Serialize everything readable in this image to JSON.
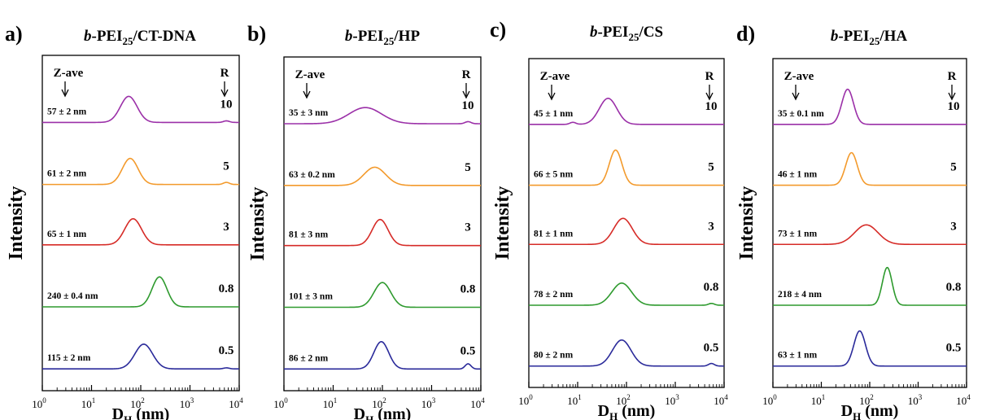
{
  "chart_data": [
    {
      "type": "line",
      "panel_label": "a)",
      "title_italic": "b",
      "title_main": "-PEI",
      "title_sub": "25",
      "title_tail": "/CT-DNA",
      "ylabel": "Intensity",
      "xlabel_main": "D",
      "xlabel_sub": "H",
      "xlabel_tail": " (nm)",
      "x_scale": "log",
      "xlim": [
        1,
        10000
      ],
      "x_ticks": [
        "10",
        "10",
        "10",
        "10",
        "10"
      ],
      "x_tick_exponents": [
        "0",
        "1",
        "2",
        "3",
        "4"
      ],
      "zave_label": "Z-ave",
      "r_label": "R",
      "series": [
        {
          "r": "10",
          "z_ave": "57 ± 2 nm",
          "color": "#9b30a8",
          "peak_x": 57,
          "width": 0.17,
          "height": 1.0,
          "extra_peak_x": 5500,
          "extra_height": 0.06
        },
        {
          "r": "5",
          "z_ave": "61 ± 2 nm",
          "color": "#f39a2c",
          "peak_x": 61,
          "width": 0.16,
          "height": 1.0,
          "extra_peak_x": 5500,
          "extra_height": 0.08
        },
        {
          "r": "3",
          "z_ave": "65 ± 1 nm",
          "color": "#d62b27",
          "peak_x": 70,
          "width": 0.17,
          "height": 1.0
        },
        {
          "r": "0.8",
          "z_ave": "240 ± 0.4 nm",
          "color": "#2e9a2e",
          "peak_x": 240,
          "width": 0.15,
          "height": 1.15
        },
        {
          "r": "0.5",
          "z_ave": "115 ± 2 nm",
          "color": "#2a2a9a",
          "peak_x": 115,
          "width": 0.18,
          "height": 0.95,
          "extra_peak_x": 5500,
          "extra_height": 0.04
        }
      ]
    },
    {
      "type": "line",
      "panel_label": "b)",
      "title_italic": "b",
      "title_main": "-PEI",
      "title_sub": "25",
      "title_tail": "/HP",
      "ylabel": "Intensity",
      "xlabel_main": "D",
      "xlabel_sub": "H",
      "xlabel_tail": " (nm)",
      "x_scale": "log",
      "xlim": [
        1,
        10000
      ],
      "x_ticks": [
        "10",
        "10",
        "10",
        "10",
        "10"
      ],
      "x_tick_exponents": [
        "0",
        "1",
        "2",
        "3",
        "4"
      ],
      "zave_label": "Z-ave",
      "r_label": "R",
      "series": [
        {
          "r": "10",
          "z_ave": "35 ± 3 nm",
          "color": "#9b30a8",
          "peak_x": 45,
          "width": 0.33,
          "height": 0.62,
          "extra_peak_x": 5500,
          "extra_height": 0.08
        },
        {
          "r": "5",
          "z_ave": "63 ± 0.2 nm",
          "color": "#f39a2c",
          "peak_x": 70,
          "width": 0.22,
          "height": 0.7
        },
        {
          "r": "3",
          "z_ave": "81 ± 3 nm",
          "color": "#d62b27",
          "peak_x": 90,
          "width": 0.16,
          "height": 1.0
        },
        {
          "r": "0.8",
          "z_ave": "101 ± 3 nm",
          "color": "#2e9a2e",
          "peak_x": 100,
          "width": 0.17,
          "height": 0.95
        },
        {
          "r": "0.5",
          "z_ave": "86 ± 2 nm",
          "color": "#2a2a9a",
          "peak_x": 95,
          "width": 0.15,
          "height": 1.05,
          "extra_peak_x": 5500,
          "extra_height": 0.2
        }
      ]
    },
    {
      "type": "line",
      "panel_label": "c)",
      "title_italic": "b",
      "title_main": "-PEI",
      "title_sub": "25",
      "title_tail": "/CS",
      "ylabel": "Intensity",
      "xlabel_main": "D",
      "xlabel_sub": "H",
      "xlabel_tail": " (nm)",
      "x_scale": "log",
      "xlim": [
        1,
        10000
      ],
      "x_ticks": [
        "10",
        "10",
        "10",
        "10",
        "10"
      ],
      "x_tick_exponents": [
        "0",
        "1",
        "2",
        "3",
        "4"
      ],
      "zave_label": "Z-ave",
      "r_label": "R",
      "series": [
        {
          "r": "10",
          "z_ave": "45 ± 1 nm",
          "color": "#9b30a8",
          "peak_x": 42,
          "width": 0.18,
          "height": 1.0,
          "extra_peak_x": 8,
          "extra_height": 0.08
        },
        {
          "r": "5",
          "z_ave": "66 ± 5 nm",
          "color": "#f39a2c",
          "peak_x": 60,
          "width": 0.13,
          "height": 1.35
        },
        {
          "r": "3",
          "z_ave": "81 ± 1 nm",
          "color": "#d62b27",
          "peak_x": 85,
          "width": 0.19,
          "height": 1.0
        },
        {
          "r": "0.8",
          "z_ave": "78 ± 2 nm",
          "color": "#2e9a2e",
          "peak_x": 80,
          "width": 0.2,
          "height": 0.85,
          "extra_peak_x": 5500,
          "extra_height": 0.07
        },
        {
          "r": "0.5",
          "z_ave": "80 ± 2 nm",
          "color": "#2a2a9a",
          "peak_x": 80,
          "width": 0.19,
          "height": 1.0,
          "extra_peak_x": 5500,
          "extra_height": 0.1
        }
      ]
    },
    {
      "type": "line",
      "panel_label": "d)",
      "title_italic": "b",
      "title_main": "-PEI",
      "title_sub": "25",
      "title_tail": "/HA",
      "ylabel": "Intensity",
      "xlabel_main": "D",
      "xlabel_sub": "H",
      "xlabel_tail": " (nm)",
      "x_scale": "log",
      "xlim": [
        1,
        10000
      ],
      "x_ticks": [
        "10",
        "10",
        "10",
        "10",
        "10"
      ],
      "x_tick_exponents": [
        "0",
        "1",
        "2",
        "3",
        "4"
      ],
      "zave_label": "Z-ave",
      "r_label": "R",
      "series": [
        {
          "r": "10",
          "z_ave": "35 ± 0.1 nm",
          "color": "#9b30a8",
          "peak_x": 35,
          "width": 0.12,
          "height": 1.35
        },
        {
          "r": "5",
          "z_ave": "46 ± 1 nm",
          "color": "#f39a2c",
          "peak_x": 42,
          "width": 0.12,
          "height": 1.25
        },
        {
          "r": "3",
          "z_ave": "73 ± 1 nm",
          "color": "#d62b27",
          "peak_x": 85,
          "width": 0.24,
          "height": 0.75
        },
        {
          "r": "0.8",
          "z_ave": "218 ± 4 nm",
          "color": "#2e9a2e",
          "peak_x": 230,
          "width": 0.1,
          "height": 1.45
        },
        {
          "r": "0.5",
          "z_ave": "63 ± 1 nm",
          "color": "#2a2a9a",
          "peak_x": 62,
          "width": 0.12,
          "height": 1.35
        }
      ]
    }
  ]
}
